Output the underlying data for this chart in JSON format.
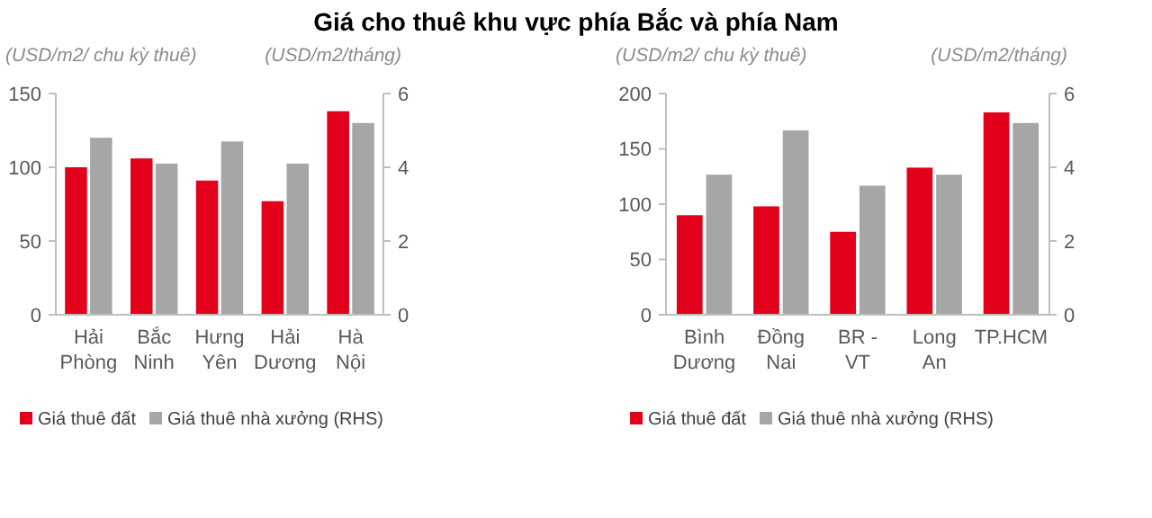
{
  "chart_data": [
    {
      "type": "bar",
      "title": "Giá cho thuê khu vực phía Bắc và phía Nam",
      "ylabel": "(USD/m2/ chu kỳ thuê)",
      "y2label": "(USD/m2/tháng)",
      "categories": [
        "Hải Phòng",
        "Bắc Ninh",
        "Hưng Yên",
        "Hải Dương",
        "Hà Nội"
      ],
      "series": [
        {
          "name": "Giá thuê đất",
          "color": "#e3001b",
          "values": [
            100,
            106,
            91,
            77,
            138
          ]
        },
        {
          "name": "Giá thuê nhà xưởng (RHS)",
          "color": "#a6a6a6",
          "axis": "y2",
          "values": [
            4.8,
            4.1,
            4.7,
            4.1,
            5.2
          ]
        }
      ],
      "ylim": [
        0,
        150
      ],
      "yticks": [
        0,
        50,
        100,
        150
      ],
      "y2lim": [
        0,
        6
      ],
      "y2ticks": [
        0,
        2,
        4,
        6
      ],
      "grid": false,
      "legend": "bottom"
    },
    {
      "type": "bar",
      "ylabel": "(USD/m2/ chu kỳ thuê)",
      "y2label": "(USD/m2/tháng)",
      "categories": [
        "Bình Dương",
        "Đồng Nai",
        "BR - VT",
        "Long An",
        "TP.HCM"
      ],
      "series": [
        {
          "name": "Giá thuê đất",
          "color": "#e3001b",
          "values": [
            90,
            98,
            75,
            133,
            183
          ]
        },
        {
          "name": "Giá thuê nhà xưởng (RHS)",
          "color": "#a6a6a6",
          "axis": "y2",
          "values": [
            3.8,
            5.0,
            3.5,
            3.8,
            5.2
          ]
        }
      ],
      "ylim": [
        0,
        200
      ],
      "yticks": [
        0,
        50,
        100,
        150,
        200
      ],
      "y2lim": [
        0,
        6
      ],
      "y2ticks": [
        0,
        2,
        4,
        6
      ],
      "grid": false,
      "legend": "bottom"
    }
  ]
}
